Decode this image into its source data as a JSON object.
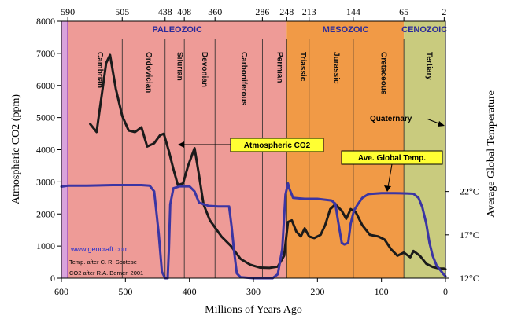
{
  "colors": {
    "pre_cambrian": "#d9a3dc",
    "paleozoic": "#ee9b97",
    "mesozoic": "#f19a46",
    "cenozoic": "#c9cb7e",
    "co2_line": "#1b1b1b",
    "temp_line": "#3b35a3",
    "era_label_paleozoic": "#2a2a9a",
    "era_label_other": "#2a2a9a",
    "annotation_box": "#ffff33",
    "divider": "#2a2a2a",
    "url": "#1e2bd0"
  },
  "chart_data": {
    "type": "line",
    "x_axis": {
      "label": "Millions of Years Ago",
      "range": [
        600,
        0
      ],
      "reversed": true,
      "ticks": [
        600,
        500,
        400,
        300,
        200,
        100,
        0
      ],
      "tick_labels": [
        "600",
        "500",
        "400",
        "300",
        "200",
        "100",
        "0"
      ]
    },
    "y_axis_left": {
      "label": "Atmospheric CO2 (ppm)",
      "range": [
        0,
        8000
      ],
      "ticks": [
        0,
        1000,
        2000,
        3000,
        4000,
        5000,
        6000,
        7000,
        8000
      ],
      "tick_labels": [
        "0",
        "1000",
        "2000",
        "3000",
        "4000",
        "5000",
        "6000",
        "7000",
        "8000"
      ]
    },
    "y_axis_right": {
      "label": "Average Global Temperature",
      "ticks": [
        {
          "label": "22°C",
          "co2_equiv": 2700
        },
        {
          "label": "17°C",
          "co2_equiv": 1350
        },
        {
          "label": "12°C",
          "co2_equiv": 0
        }
      ]
    },
    "top_boundary_ages": [
      {
        "age": 590,
        "label": "590"
      },
      {
        "age": 505,
        "label": "505"
      },
      {
        "age": 438,
        "label": "438"
      },
      {
        "age": 408,
        "label": "408"
      },
      {
        "age": 360,
        "label": "360"
      },
      {
        "age": 286,
        "label": "286"
      },
      {
        "age": 248,
        "label": "248"
      },
      {
        "age": 213,
        "label": "213"
      },
      {
        "age": 144,
        "label": "144"
      },
      {
        "age": 65,
        "label": "65"
      },
      {
        "age": 2,
        "label": "2"
      }
    ],
    "eras": [
      {
        "name": "",
        "start": 600,
        "end": 590,
        "color_key": "pre_cambrian"
      },
      {
        "name": "PALEOZOIC",
        "start": 590,
        "end": 248,
        "color_key": "paleozoic"
      },
      {
        "name": "MESOZOIC",
        "start": 248,
        "end": 65,
        "color_key": "mesozoic"
      },
      {
        "name": "CENOZOIC",
        "start": 65,
        "end": 0,
        "color_key": "cenozoic"
      }
    ],
    "periods": [
      {
        "name": "Cambrian",
        "start": 590,
        "end": 505
      },
      {
        "name": "Ordovician",
        "start": 505,
        "end": 438
      },
      {
        "name": "Silurian",
        "start": 438,
        "end": 408
      },
      {
        "name": "Devonian",
        "start": 408,
        "end": 360
      },
      {
        "name": "Carboniferous",
        "start": 360,
        "end": 286
      },
      {
        "name": "Permian",
        "start": 286,
        "end": 248
      },
      {
        "name": "Triassic",
        "start": 248,
        "end": 213
      },
      {
        "name": "Jurassic",
        "start": 213,
        "end": 144
      },
      {
        "name": "Cretaceous",
        "start": 144,
        "end": 65
      },
      {
        "name": "Tertiary",
        "start": 65,
        "end": 2
      }
    ],
    "series": [
      {
        "name": "Atmospheric CO2",
        "color_key": "co2_line",
        "points": [
          [
            555,
            4800
          ],
          [
            545,
            4550
          ],
          [
            530,
            6700
          ],
          [
            524,
            6950
          ],
          [
            515,
            5900
          ],
          [
            505,
            5050
          ],
          [
            495,
            4600
          ],
          [
            485,
            4550
          ],
          [
            475,
            4700
          ],
          [
            466,
            4100
          ],
          [
            455,
            4200
          ],
          [
            446,
            4450
          ],
          [
            440,
            4500
          ],
          [
            432,
            3950
          ],
          [
            425,
            3400
          ],
          [
            418,
            2900
          ],
          [
            410,
            2950
          ],
          [
            402,
            3500
          ],
          [
            392,
            4050
          ],
          [
            385,
            3200
          ],
          [
            378,
            2300
          ],
          [
            368,
            1800
          ],
          [
            350,
            1300
          ],
          [
            335,
            1000
          ],
          [
            320,
            600
          ],
          [
            305,
            420
          ],
          [
            290,
            330
          ],
          [
            275,
            320
          ],
          [
            262,
            360
          ],
          [
            252,
            700
          ],
          [
            246,
            1750
          ],
          [
            240,
            1800
          ],
          [
            233,
            1450
          ],
          [
            226,
            1300
          ],
          [
            220,
            1550
          ],
          [
            213,
            1300
          ],
          [
            205,
            1250
          ],
          [
            195,
            1350
          ],
          [
            188,
            1650
          ],
          [
            180,
            2150
          ],
          [
            172,
            2300
          ],
          [
            162,
            2100
          ],
          [
            155,
            1850
          ],
          [
            148,
            2150
          ],
          [
            140,
            2050
          ],
          [
            130,
            1650
          ],
          [
            118,
            1350
          ],
          [
            105,
            1300
          ],
          [
            95,
            1200
          ],
          [
            85,
            900
          ],
          [
            75,
            700
          ],
          [
            65,
            800
          ],
          [
            55,
            650
          ],
          [
            50,
            850
          ],
          [
            40,
            700
          ],
          [
            30,
            450
          ],
          [
            20,
            350
          ],
          [
            10,
            300
          ],
          [
            3,
            300
          ],
          [
            0,
            280
          ]
        ]
      },
      {
        "name": "Ave. Global Temp.",
        "color_key": "temp_line",
        "points": [
          [
            600,
            2850
          ],
          [
            590,
            2880
          ],
          [
            560,
            2880
          ],
          [
            520,
            2900
          ],
          [
            475,
            2900
          ],
          [
            462,
            2880
          ],
          [
            455,
            2700
          ],
          [
            448,
            1400
          ],
          [
            443,
            200
          ],
          [
            438,
            0
          ],
          [
            434,
            0
          ],
          [
            432,
            900
          ],
          [
            430,
            2300
          ],
          [
            425,
            2800
          ],
          [
            415,
            2860
          ],
          [
            400,
            2860
          ],
          [
            392,
            2700
          ],
          [
            385,
            2350
          ],
          [
            370,
            2250
          ],
          [
            355,
            2230
          ],
          [
            338,
            2230
          ],
          [
            334,
            1600
          ],
          [
            330,
            800
          ],
          [
            326,
            150
          ],
          [
            320,
            30
          ],
          [
            300,
            0
          ],
          [
            270,
            0
          ],
          [
            262,
            120
          ],
          [
            255,
            900
          ],
          [
            250,
            2600
          ],
          [
            246,
            2950
          ],
          [
            244,
            2800
          ],
          [
            238,
            2500
          ],
          [
            220,
            2470
          ],
          [
            200,
            2470
          ],
          [
            178,
            2420
          ],
          [
            172,
            2320
          ],
          [
            168,
            1800
          ],
          [
            162,
            1100
          ],
          [
            158,
            1050
          ],
          [
            152,
            1100
          ],
          [
            148,
            1700
          ],
          [
            143,
            2100
          ],
          [
            137,
            2300
          ],
          [
            130,
            2500
          ],
          [
            120,
            2620
          ],
          [
            100,
            2650
          ],
          [
            80,
            2650
          ],
          [
            60,
            2640
          ],
          [
            50,
            2630
          ],
          [
            42,
            2500
          ],
          [
            36,
            2200
          ],
          [
            30,
            1700
          ],
          [
            25,
            1100
          ],
          [
            20,
            700
          ],
          [
            14,
            400
          ],
          [
            8,
            250
          ],
          [
            3,
            120
          ],
          [
            0,
            60
          ]
        ]
      }
    ],
    "annotations": [
      {
        "text": "Atmospheric CO2",
        "boxed": true
      },
      {
        "text": "Ave. Global Temp.",
        "boxed": true
      },
      {
        "text": "Quaternary",
        "boxed": false
      }
    ],
    "credits": {
      "url": "www.geocraft.com",
      "temp_source": "Temp. after C. R. Scotese",
      "co2_source": "CO2 after R.A. Berner, 2001"
    },
    "grid": false
  }
}
